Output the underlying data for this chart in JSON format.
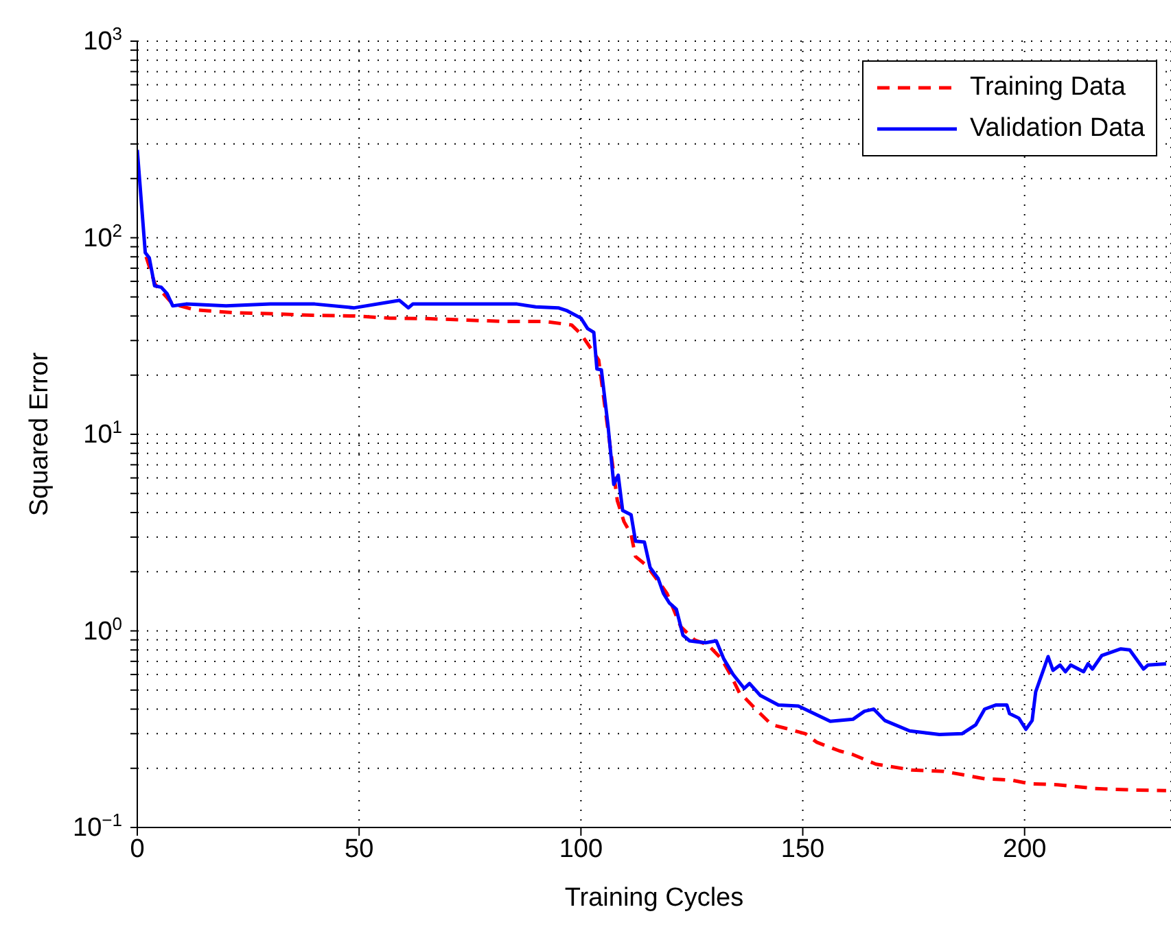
{
  "chart_data": {
    "type": "line",
    "xlabel": "Training Cycles",
    "ylabel": "Squared Error",
    "log": "y",
    "grid": true,
    "legend": "top right",
    "marker": "none",
    "xlim": [
      0,
      233
    ],
    "xticks": [
      0,
      50,
      100,
      150,
      200
    ],
    "ylim": [
      0.1,
      1000
    ],
    "yticks": [
      {
        "value": 0.1,
        "label": "10$^{−1}$"
      },
      {
        "value": 0.2,
        "label": null
      },
      {
        "value": 0.3,
        "label": null
      },
      {
        "value": 0.4,
        "label": null
      },
      {
        "value": 0.5,
        "label": null
      },
      {
        "value": 0.6,
        "label": null
      },
      {
        "value": 0.7,
        "label": null
      },
      {
        "value": 0.8,
        "label": null
      },
      {
        "value": 0.9,
        "label": null
      },
      {
        "value": 1,
        "label": "10$^{0}$"
      },
      {
        "value": 2,
        "label": null
      },
      {
        "value": 3,
        "label": null
      },
      {
        "value": 4,
        "label": null
      },
      {
        "value": 5,
        "label": null
      },
      {
        "value": 6,
        "label": null
      },
      {
        "value": 7,
        "label": null
      },
      {
        "value": 8,
        "label": null
      },
      {
        "value": 9,
        "label": null
      },
      {
        "value": 10,
        "label": "10$^{1}$"
      },
      {
        "value": 20,
        "label": null
      },
      {
        "value": 30,
        "label": null
      },
      {
        "value": 40,
        "label": null
      },
      {
        "value": 50,
        "label": null
      },
      {
        "value": 60,
        "label": null
      },
      {
        "value": 70,
        "label": null
      },
      {
        "value": 80,
        "label": null
      },
      {
        "value": 90,
        "label": null
      },
      {
        "value": 100,
        "label": "10$^{2}$"
      },
      {
        "value": 200,
        "label": null
      },
      {
        "value": 300,
        "label": null
      },
      {
        "value": 400,
        "label": null
      },
      {
        "value": 500,
        "label": null
      },
      {
        "value": 600,
        "label": null
      },
      {
        "value": 700,
        "label": null
      },
      {
        "value": 800,
        "label": null
      },
      {
        "value": 900,
        "label": null
      },
      {
        "value": 1000,
        "label": "10$^{3}$"
      }
    ],
    "series": [
      {
        "name": "Training Data",
        "color": "#ff0000",
        "line_style": "dashed",
        "x": [
          2,
          4,
          8,
          13,
          16,
          22,
          31.5,
          39.7,
          48.9,
          57,
          65.2,
          73.4,
          82.6,
          91.8,
          97.9,
          100,
          104,
          106.1,
          108.2,
          109.7,
          111.3,
          112.3,
          114.8,
          118.4,
          119.4,
          122.5,
          125.6,
          128.6,
          131.7,
          133.7,
          135.8,
          136.8,
          139.4,
          143,
          146,
          150.6,
          153.2,
          158.3,
          161.3,
          166.5,
          174.6,
          181.8,
          191,
          197.1,
          201.2,
          207.4,
          215.6,
          224.7,
          231.9
        ],
        "values": [
          80,
          58,
          46,
          43,
          42.5,
          41.5,
          41,
          40.3,
          40,
          39,
          38.8,
          38.2,
          37.5,
          37.5,
          36,
          32.4,
          23.9,
          10.5,
          4.6,
          3.6,
          3.1,
          2.39,
          2.15,
          1.67,
          1.55,
          1.05,
          0.9,
          0.85,
          0.72,
          0.6,
          0.48,
          0.46,
          0.4,
          0.333,
          0.32,
          0.3,
          0.271,
          0.245,
          0.235,
          0.21,
          0.196,
          0.193,
          0.177,
          0.174,
          0.167,
          0.165,
          0.158,
          0.155,
          0.154
        ]
      },
      {
        "name": "Validation Data",
        "color": "#0000ff",
        "line_style": "solid",
        "x": [
          0,
          1.8,
          2.7,
          3.9,
          5.4,
          6.7,
          8,
          11,
          20,
          30,
          40,
          48.9,
          59.1,
          61.1,
          62.1,
          75.5,
          85.6,
          89.8,
          94.9,
          96.9,
          100,
          101.5,
          102.9,
          103.6,
          104.6,
          106.1,
          107.4,
          108.4,
          109.4,
          111.3,
          112.3,
          114.3,
          115.6,
          117.4,
          118.6,
          119.9,
          121.5,
          123,
          124.5,
          128.1,
          130.5,
          132.2,
          134.3,
          136.8,
          138,
          140.4,
          144.5,
          149,
          156.2,
          161.3,
          163.9,
          166,
          168.5,
          174.1,
          180.8,
          185.9,
          189,
          191,
          193.6,
          196,
          196.6,
          198.7,
          200.3,
          201.7,
          202.5,
          205.3,
          206.4,
          208,
          209.2,
          210.4,
          213.3,
          214.3,
          215.3,
          217.4,
          221.7,
          223.7,
          226.8,
          227.8,
          231.9
        ],
        "values": [
          280,
          84,
          79,
          57,
          56,
          52,
          45,
          46,
          45,
          46,
          46,
          44,
          48,
          44,
          46,
          46,
          46,
          44.5,
          44,
          42.5,
          39,
          34.5,
          33,
          21.5,
          21.3,
          11.1,
          5.56,
          6.2,
          4.1,
          3.9,
          2.86,
          2.83,
          2.1,
          1.85,
          1.55,
          1.39,
          1.29,
          0.95,
          0.89,
          0.87,
          0.89,
          0.72,
          0.6,
          0.51,
          0.54,
          0.47,
          0.42,
          0.415,
          0.347,
          0.355,
          0.39,
          0.4,
          0.35,
          0.31,
          0.297,
          0.3,
          0.333,
          0.4,
          0.42,
          0.42,
          0.38,
          0.36,
          0.316,
          0.35,
          0.49,
          0.74,
          0.63,
          0.67,
          0.62,
          0.67,
          0.62,
          0.68,
          0.64,
          0.75,
          0.81,
          0.8,
          0.64,
          0.67,
          0.68
        ]
      }
    ]
  }
}
